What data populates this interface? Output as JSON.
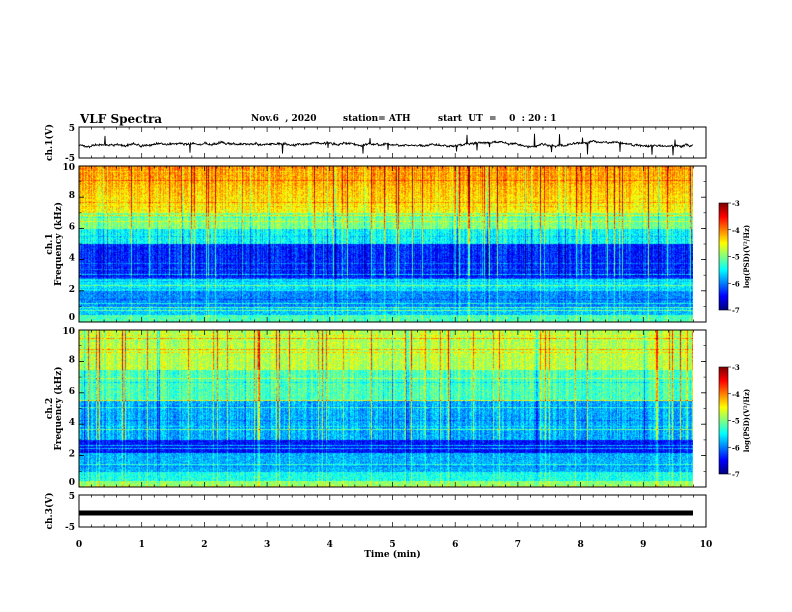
{
  "header": {
    "title": "VLF Spectra",
    "date": "Nov.6  , 2020",
    "station": "station= ATH",
    "start": "start  UT  =    0  : 20 : 1"
  },
  "chart_data": [
    {
      "type": "line",
      "ylabel": "ch.1(V)",
      "ylim": [
        -5,
        5
      ],
      "yticks": [
        "5",
        "-5"
      ],
      "xlim": [
        0,
        10
      ],
      "description_series": "noisy waveform near zero with spikes",
      "series": [
        {
          "color": "#000000"
        }
      ]
    },
    {
      "type": "heatmap",
      "ylabel": "ch.1\nFrequency (kHz)",
      "ylim": [
        0,
        10
      ],
      "yticks": [
        "0",
        "2",
        "4",
        "6",
        "8",
        "10"
      ],
      "xlim": [
        0,
        9.85
      ],
      "colorbar": {
        "label": "log(PSD)(V²/Hz)",
        "range": [
          -7,
          -3
        ],
        "ticks": [
          "-3",
          "-4",
          "-5",
          "-6",
          "-7"
        ]
      }
    },
    {
      "type": "heatmap",
      "ylabel": "ch.2\nFrequency (kHz)",
      "ylim": [
        0,
        10
      ],
      "yticks": [
        "0",
        "2",
        "4",
        "6",
        "8",
        "10"
      ],
      "xlim": [
        0,
        9.85
      ],
      "colorbar": {
        "label": "log(PSD)(V²/Hz)",
        "range": [
          -7,
          -3
        ],
        "ticks": [
          "-3",
          "-4",
          "-5",
          "-6",
          "-7"
        ]
      }
    },
    {
      "type": "line",
      "ylabel": "ch.3(V)",
      "ylim": [
        -5,
        5
      ],
      "yticks": [
        "5",
        "-5"
      ],
      "xlim": [
        0,
        10
      ],
      "series": [
        {
          "value": 0,
          "color": "#000000"
        }
      ]
    }
  ],
  "x_axis": {
    "label": "Time  (min)",
    "range": [
      0,
      10
    ],
    "ticks": [
      "0",
      "1",
      "2",
      "3",
      "4",
      "5",
      "6",
      "7",
      "8",
      "9",
      "10"
    ]
  },
  "colors": {
    "background": "#ffffff",
    "axis": "#000000"
  }
}
